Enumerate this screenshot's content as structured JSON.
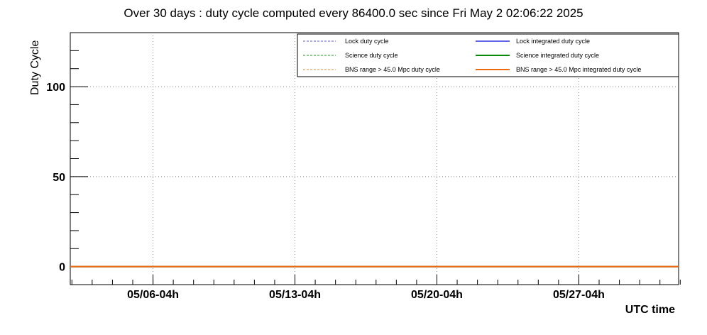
{
  "chart_data": {
    "type": "line",
    "title": "Over 30 days : duty cycle computed every 86400.0 sec since Fri May  2 02:06:22 2025",
    "xlabel": "UTC time",
    "ylabel": "Duty Cycle",
    "x_ticks": [
      "05/06-04h",
      "05/13-04h",
      "05/20-04h",
      "05/27-04h"
    ],
    "x_tick_days": [
      4.08,
      11.08,
      18.08,
      25.08
    ],
    "xlim_days": [
      0,
      30
    ],
    "y_ticks": [
      "0",
      "50",
      "100"
    ],
    "y_tick_values": [
      0,
      50,
      100
    ],
    "ylim": [
      -10,
      130
    ],
    "grid": true,
    "legend_position": "top-right",
    "series": [
      {
        "name": "Lock duty cycle",
        "style": "dashed",
        "color": "#5b5bd6",
        "x_days": [
          0,
          30
        ],
        "values": [
          0,
          0
        ]
      },
      {
        "name": "Science duty cycle",
        "style": "dashed",
        "color": "#1a9a1a",
        "x_days": [
          0,
          30
        ],
        "values": [
          0,
          0
        ]
      },
      {
        "name": "BNS range > 45.0 Mpc duty cycle",
        "style": "dashed",
        "color": "#e08a2c",
        "x_days": [
          0,
          30
        ],
        "values": [
          0,
          0
        ]
      },
      {
        "name": "Lock integrated duty cycle",
        "style": "solid",
        "color": "#6464e6",
        "x_days": [
          0,
          30
        ],
        "values": [
          0,
          0
        ]
      },
      {
        "name": "Science integrated duty cycle",
        "style": "solid",
        "color": "#0a8a0a",
        "x_days": [
          0,
          30
        ],
        "values": [
          0,
          0
        ]
      },
      {
        "name": "BNS range > 45.0 Mpc integrated duty cycle",
        "style": "solid",
        "color": "#ee6a10",
        "x_days": [
          0,
          30
        ],
        "values": [
          0,
          0
        ]
      }
    ]
  }
}
